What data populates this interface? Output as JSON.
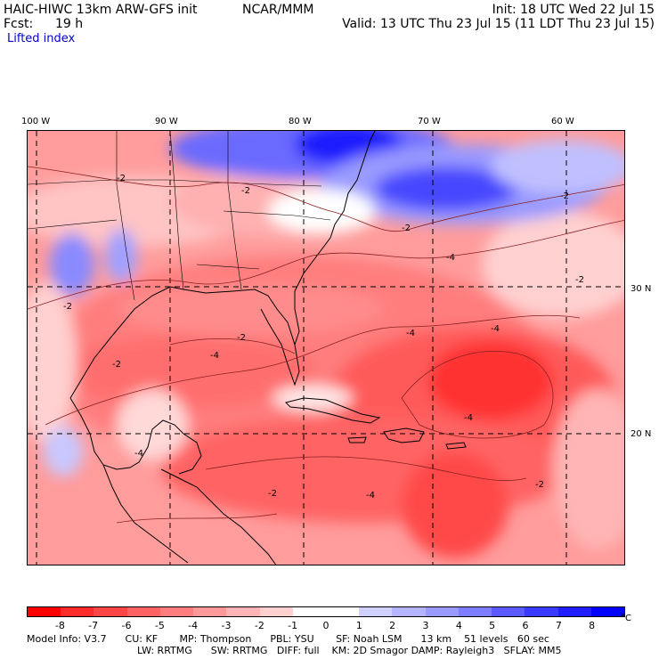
{
  "header": {
    "model": "HAIC-HIWC 13km ARW-GFS init",
    "org": "NCAR/MMM",
    "init": "Init: 18 UTC Wed 22 Jul 15",
    "fcst_label": "Fcst:",
    "fcst_value": "19 h",
    "valid": "Valid: 13 UTC Thu 23 Jul 15 (11 LDT Thu 23 Jul 15)",
    "field": "Lifted index"
  },
  "map": {
    "lon_labels": [
      "100 W",
      "90 W",
      "80 W",
      "70 W",
      "60 W"
    ],
    "lat_labels": [
      "30 N",
      "20 N"
    ],
    "contour_labels": [
      "-2",
      "-2",
      "-2",
      "-2",
      "-2",
      "-2",
      "-4",
      "-4",
      "-4",
      "-4",
      "-4",
      "-4",
      "-4",
      "-2",
      "-2",
      "-2",
      "-2"
    ]
  },
  "colorbar": {
    "ticks": [
      "-8",
      "-7",
      "-6",
      "-5",
      "-4",
      "-3",
      "-2",
      "-1",
      "0",
      "1",
      "2",
      "3",
      "4",
      "5",
      "6",
      "7",
      "8"
    ],
    "unit": "°C",
    "colors": [
      "#ff0000",
      "#ff2a2a",
      "#ff4646",
      "#ff6262",
      "#ff7d7d",
      "#ff9999",
      "#ffb5b5",
      "#ffd0d0",
      "#ffffff",
      "#ffffff",
      "#d0d0ff",
      "#b5b5ff",
      "#9999ff",
      "#7d7dff",
      "#5a5aff",
      "#3a3aff",
      "#1e1eff",
      "#0000ff"
    ]
  },
  "footer": {
    "line1": "Model Info: V3.7      CU: KF       MP: Thompson      PBL: YSU       SF: Noah LSM      13 km    51 levels   60 sec",
    "line2": "LW: RRTMG      SW: RRTMG   DIFF: full    KM: 2D Smagor DAMP: Rayleigh3   SFLAY: MM5"
  }
}
